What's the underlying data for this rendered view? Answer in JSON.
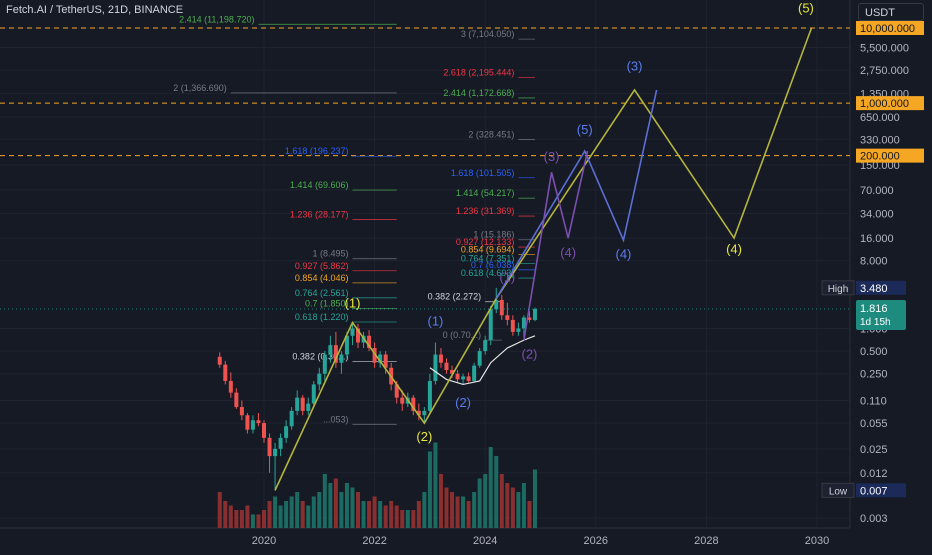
{
  "header": {
    "symbol_title": "Fetch.AI / TetherUS, 21D, BINANCE",
    "currency": "USDT"
  },
  "chart_data": {
    "type": "candlestick",
    "scale": "log",
    "grid": true,
    "y_ticks": [
      "10,000.000",
      "5,500.000",
      "2,750.000",
      "1,350.000",
      "650.000",
      "330.000",
      "150.000",
      "70.000",
      "34.000",
      "16.000",
      "8.000",
      "1.000",
      "0.500",
      "0.250",
      "0.110",
      "0.055",
      "0.025",
      "0.012",
      "0.003"
    ],
    "x_ticks": [
      "2020",
      "2022",
      "2024",
      "2026",
      "2028",
      "2030"
    ],
    "price_labels": [
      {
        "text": "10,000.000",
        "value": 10000,
        "style": "orange"
      },
      {
        "text": "1,000.000",
        "value": 1000,
        "style": "orange"
      },
      {
        "text": "200.000",
        "value": 200,
        "style": "orange"
      },
      {
        "text": "3.480",
        "value": 3.48,
        "tag": "High",
        "style": "dark"
      },
      {
        "text": "1.816",
        "sub": "1d 15h",
        "value": 1.816,
        "style": "teal"
      },
      {
        "text": "0.007",
        "value": 0.007,
        "tag": "Low",
        "style": "dark"
      }
    ],
    "horizontal_levels": [
      {
        "value": 10000,
        "color": "#f5a623"
      },
      {
        "value": 1000,
        "color": "#f5a623"
      },
      {
        "value": 200,
        "color": "#f5a623"
      }
    ],
    "fib_labels": [
      {
        "text": "2.414 (11,198.720)",
        "color": "#4caf50",
        "value": 11198.72,
        "x0": 2019.9,
        "x1": 2022.4
      },
      {
        "text": "3 (7,104.050)",
        "color": "#787b86",
        "value": 7104.05,
        "x0": 2024.6,
        "x1": 2024.9
      },
      {
        "text": "2.618 (2,195.444)",
        "color": "#f23645",
        "value": 2195.444,
        "x0": 2024.6,
        "x1": 2024.9
      },
      {
        "text": "2 (1,366.690)",
        "color": "#787b86",
        "value": 1366.69,
        "x0": 2019.4,
        "x1": 2022.4
      },
      {
        "text": "2.414 (1,172.668)",
        "color": "#4caf50",
        "value": 1172.668,
        "x0": 2024.6,
        "x1": 2024.9
      },
      {
        "text": "2 (328.451)",
        "color": "#787b86",
        "value": 328.451,
        "x0": 2024.6,
        "x1": 2024.9
      },
      {
        "text": "1.618 (196.237)",
        "color": "#2962ff",
        "value": 196.237,
        "x0": 2021.6,
        "x1": 2022.4
      },
      {
        "text": "1.618 (101.505)",
        "color": "#2962ff",
        "value": 101.505,
        "x0": 2024.6,
        "x1": 2024.9
      },
      {
        "text": "1.414 (69.606)",
        "color": "#4caf50",
        "value": 69.606,
        "x0": 2021.6,
        "x1": 2022.4
      },
      {
        "text": "1.414 (54.217)",
        "color": "#4caf50",
        "value": 54.217,
        "x0": 2024.6,
        "x1": 2024.9
      },
      {
        "text": "1.236 (28.177)",
        "color": "#f23645",
        "value": 28.177,
        "x0": 2021.6,
        "x1": 2022.4
      },
      {
        "text": "1.236 (31.369)",
        "color": "#f23645",
        "value": 31.369,
        "x0": 2024.6,
        "x1": 2024.9
      },
      {
        "text": "1 (15.186)",
        "color": "#787b86",
        "value": 15.186,
        "x0": 2024.6,
        "x1": 2024.9
      },
      {
        "text": "0.927 (12.133)",
        "color": "#f23645",
        "value": 12.133,
        "x0": 2024.6,
        "x1": 2024.9
      },
      {
        "text": "0.854 (9.694)",
        "color": "#f5a623",
        "value": 9.694,
        "x0": 2024.6,
        "x1": 2024.9
      },
      {
        "text": "1 (8.495)",
        "color": "#787b86",
        "value": 8.495,
        "x0": 2021.6,
        "x1": 2022.4
      },
      {
        "text": "0.764 (7.351)",
        "color": "#26a69a",
        "value": 7.351,
        "x0": 2024.6,
        "x1": 2024.9
      },
      {
        "text": "0.7 (6.038)",
        "color": "#2962ff",
        "value": 6.038,
        "x0": 2024.6,
        "x1": 2024.9
      },
      {
        "text": "0.927 (5.862)",
        "color": "#f23645",
        "value": 5.862,
        "x0": 2021.6,
        "x1": 2022.4
      },
      {
        "text": "0.618 (4.693)",
        "color": "#26a69a",
        "value": 4.693,
        "x0": 2024.6,
        "x1": 2024.9
      },
      {
        "text": "0.854 (4.046)",
        "color": "#f5a623",
        "value": 4.046,
        "x0": 2021.6,
        "x1": 2022.4
      },
      {
        "text": "0.764 (2.561)",
        "color": "#26a69a",
        "value": 2.561,
        "x0": 2021.6,
        "x1": 2022.4
      },
      {
        "text": "0.382 (2.272)",
        "color": "#d1d4dc",
        "value": 2.272,
        "x0": 2024.0,
        "x1": 2024.3
      },
      {
        "text": "0.7 (1.850)",
        "color": "#4caf50",
        "value": 1.85,
        "x0": 2021.6,
        "x1": 2022.4
      },
      {
        "text": "0.618 (1.220)",
        "color": "#26a69a",
        "value": 1.22,
        "x0": 2021.6,
        "x1": 2022.4
      },
      {
        "text": "0 (0.70...)",
        "color": "#787b86",
        "value": 0.7,
        "x0": 2024.0,
        "x1": 2024.3
      },
      {
        "text": "0.382 (0.36...)",
        "color": "#d1d4dc",
        "value": 0.365,
        "x0": 2021.6,
        "x1": 2022.4
      },
      {
        "text": "...053)",
        "color": "#787b86",
        "value": 0.053,
        "x0": 2021.6,
        "x1": 2022.4
      }
    ],
    "wave_paths": [
      {
        "color": "#b5b53c",
        "points": [
          [
            2020.2,
            0.007
          ],
          [
            2021.6,
            1.2
          ],
          [
            2022.9,
            0.055
          ],
          [
            2024.2,
            2.5
          ],
          [
            2026.7,
            1500
          ],
          [
            2028.5,
            16
          ],
          [
            2029.9,
            10000
          ]
        ]
      },
      {
        "color": "#5b6fd6",
        "points": [
          [
            2024.2,
            2.5
          ],
          [
            2025.8,
            230
          ],
          [
            2026.5,
            15
          ],
          [
            2027.1,
            1500
          ]
        ]
      },
      {
        "color": "#7b4fb0",
        "points": [
          [
            2024.7,
            0.7
          ],
          [
            2025.2,
            120
          ],
          [
            2025.5,
            16
          ],
          [
            2025.85,
            230
          ]
        ]
      }
    ],
    "wave_labels": [
      {
        "text": "(1)",
        "color": "#e8e83c",
        "x": 2021.6,
        "y": 1.9
      },
      {
        "text": "(2)",
        "color": "#e8e83c",
        "x": 2022.9,
        "y": 0.032
      },
      {
        "text": "(4)",
        "color": "#e8e83c",
        "x": 2028.5,
        "y": 10
      },
      {
        "text": "(5)",
        "color": "#e8e83c",
        "x": 2029.8,
        "y": 16000
      },
      {
        "text": "(1)",
        "color": "#5b7cf0",
        "x": 2023.1,
        "y": 1.1
      },
      {
        "text": "(2)",
        "color": "#5b7cf0",
        "x": 2023.6,
        "y": 0.09
      },
      {
        "text": "(3)",
        "color": "#5b7cf0",
        "x": 2026.7,
        "y": 2700
      },
      {
        "text": "(4)",
        "color": "#5b7cf0",
        "x": 2026.5,
        "y": 8.5
      },
      {
        "text": "(5)",
        "color": "#5b7cf0",
        "x": 2025.8,
        "y": 390
      },
      {
        "text": "(1)",
        "color": "#7b4fb0",
        "x": 2024.4,
        "y": 4.2
      },
      {
        "text": "(2)",
        "color": "#7b4fb0",
        "x": 2024.8,
        "y": 0.4
      },
      {
        "text": "(3)",
        "color": "#7b4fb0",
        "x": 2025.2,
        "y": 170
      },
      {
        "text": "(4)",
        "color": "#7b4fb0",
        "x": 2025.5,
        "y": 9
      }
    ],
    "moving_average": [
      [
        2023.0,
        0.3
      ],
      [
        2023.3,
        0.21
      ],
      [
        2023.6,
        0.18
      ],
      [
        2023.9,
        0.2
      ],
      [
        2024.1,
        0.35
      ],
      [
        2024.4,
        0.55
      ],
      [
        2024.7,
        0.7
      ],
      [
        2024.9,
        0.8
      ]
    ],
    "candles": [
      {
        "t": 2019.2,
        "o": 0.42,
        "h": 0.48,
        "l": 0.3,
        "c": 0.33
      },
      {
        "t": 2019.3,
        "o": 0.33,
        "h": 0.37,
        "l": 0.18,
        "c": 0.2
      },
      {
        "t": 2019.4,
        "o": 0.2,
        "h": 0.26,
        "l": 0.12,
        "c": 0.14
      },
      {
        "t": 2019.5,
        "o": 0.14,
        "h": 0.16,
        "l": 0.085,
        "c": 0.09
      },
      {
        "t": 2019.6,
        "o": 0.09,
        "h": 0.11,
        "l": 0.06,
        "c": 0.07
      },
      {
        "t": 2019.7,
        "o": 0.07,
        "h": 0.075,
        "l": 0.04,
        "c": 0.045
      },
      {
        "t": 2019.8,
        "o": 0.045,
        "h": 0.07,
        "l": 0.04,
        "c": 0.06
      },
      {
        "t": 2019.9,
        "o": 0.06,
        "h": 0.075,
        "l": 0.05,
        "c": 0.055
      },
      {
        "t": 2020.0,
        "o": 0.055,
        "h": 0.06,
        "l": 0.03,
        "c": 0.035
      },
      {
        "t": 2020.1,
        "o": 0.035,
        "h": 0.04,
        "l": 0.012,
        "c": 0.02
      },
      {
        "t": 2020.2,
        "o": 0.02,
        "h": 0.03,
        "l": 0.007,
        "c": 0.025
      },
      {
        "t": 2020.3,
        "o": 0.025,
        "h": 0.04,
        "l": 0.02,
        "c": 0.035
      },
      {
        "t": 2020.4,
        "o": 0.035,
        "h": 0.06,
        "l": 0.03,
        "c": 0.05
      },
      {
        "t": 2020.5,
        "o": 0.05,
        "h": 0.09,
        "l": 0.045,
        "c": 0.08
      },
      {
        "t": 2020.6,
        "o": 0.08,
        "h": 0.15,
        "l": 0.07,
        "c": 0.12
      },
      {
        "t": 2020.7,
        "o": 0.12,
        "h": 0.13,
        "l": 0.07,
        "c": 0.08
      },
      {
        "t": 2020.8,
        "o": 0.08,
        "h": 0.12,
        "l": 0.07,
        "c": 0.1
      },
      {
        "t": 2020.9,
        "o": 0.1,
        "h": 0.2,
        "l": 0.09,
        "c": 0.18
      },
      {
        "t": 2021.0,
        "o": 0.18,
        "h": 0.3,
        "l": 0.15,
        "c": 0.25
      },
      {
        "t": 2021.1,
        "o": 0.25,
        "h": 0.5,
        "l": 0.2,
        "c": 0.45
      },
      {
        "t": 2021.2,
        "o": 0.45,
        "h": 0.8,
        "l": 0.35,
        "c": 0.6
      },
      {
        "t": 2021.3,
        "o": 0.6,
        "h": 0.9,
        "l": 0.3,
        "c": 0.35
      },
      {
        "t": 2021.4,
        "o": 0.35,
        "h": 0.5,
        "l": 0.25,
        "c": 0.45
      },
      {
        "t": 2021.5,
        "o": 0.45,
        "h": 0.9,
        "l": 0.4,
        "c": 0.8
      },
      {
        "t": 2021.6,
        "o": 0.8,
        "h": 1.2,
        "l": 0.6,
        "c": 1.0
      },
      {
        "t": 2021.7,
        "o": 1.0,
        "h": 1.15,
        "l": 0.55,
        "c": 0.65
      },
      {
        "t": 2021.8,
        "o": 0.65,
        "h": 0.9,
        "l": 0.55,
        "c": 0.8
      },
      {
        "t": 2021.9,
        "o": 0.8,
        "h": 0.95,
        "l": 0.5,
        "c": 0.55
      },
      {
        "t": 2022.0,
        "o": 0.55,
        "h": 0.65,
        "l": 0.3,
        "c": 0.35
      },
      {
        "t": 2022.1,
        "o": 0.35,
        "h": 0.5,
        "l": 0.3,
        "c": 0.45
      },
      {
        "t": 2022.2,
        "o": 0.45,
        "h": 0.5,
        "l": 0.25,
        "c": 0.3
      },
      {
        "t": 2022.3,
        "o": 0.3,
        "h": 0.35,
        "l": 0.15,
        "c": 0.18
      },
      {
        "t": 2022.4,
        "o": 0.18,
        "h": 0.2,
        "l": 0.1,
        "c": 0.12
      },
      {
        "t": 2022.5,
        "o": 0.12,
        "h": 0.15,
        "l": 0.08,
        "c": 0.1
      },
      {
        "t": 2022.6,
        "o": 0.1,
        "h": 0.14,
        "l": 0.09,
        "c": 0.12
      },
      {
        "t": 2022.7,
        "o": 0.12,
        "h": 0.13,
        "l": 0.07,
        "c": 0.08
      },
      {
        "t": 2022.8,
        "o": 0.08,
        "h": 0.1,
        "l": 0.06,
        "c": 0.07
      },
      {
        "t": 2022.9,
        "o": 0.07,
        "h": 0.09,
        "l": 0.055,
        "c": 0.08
      },
      {
        "t": 2023.0,
        "o": 0.08,
        "h": 0.25,
        "l": 0.075,
        "c": 0.2
      },
      {
        "t": 2023.1,
        "o": 0.2,
        "h": 0.65,
        "l": 0.18,
        "c": 0.45
      },
      {
        "t": 2023.2,
        "o": 0.45,
        "h": 0.55,
        "l": 0.3,
        "c": 0.35
      },
      {
        "t": 2023.3,
        "o": 0.35,
        "h": 0.4,
        "l": 0.25,
        "c": 0.28
      },
      {
        "t": 2023.4,
        "o": 0.28,
        "h": 0.32,
        "l": 0.22,
        "c": 0.25
      },
      {
        "t": 2023.5,
        "o": 0.25,
        "h": 0.28,
        "l": 0.19,
        "c": 0.21
      },
      {
        "t": 2023.6,
        "o": 0.21,
        "h": 0.25,
        "l": 0.18,
        "c": 0.23
      },
      {
        "t": 2023.7,
        "o": 0.23,
        "h": 0.26,
        "l": 0.19,
        "c": 0.2
      },
      {
        "t": 2023.8,
        "o": 0.2,
        "h": 0.35,
        "l": 0.19,
        "c": 0.32
      },
      {
        "t": 2023.9,
        "o": 0.32,
        "h": 0.55,
        "l": 0.3,
        "c": 0.5
      },
      {
        "t": 2024.0,
        "o": 0.5,
        "h": 0.8,
        "l": 0.45,
        "c": 0.7
      },
      {
        "t": 2024.1,
        "o": 0.7,
        "h": 2.0,
        "l": 0.6,
        "c": 1.8
      },
      {
        "t": 2024.2,
        "o": 1.8,
        "h": 3.48,
        "l": 1.6,
        "c": 2.4
      },
      {
        "t": 2024.3,
        "o": 2.4,
        "h": 2.8,
        "l": 1.3,
        "c": 1.5
      },
      {
        "t": 2024.4,
        "o": 1.5,
        "h": 2.2,
        "l": 1.1,
        "c": 1.3
      },
      {
        "t": 2024.5,
        "o": 1.3,
        "h": 1.5,
        "l": 0.8,
        "c": 0.9
      },
      {
        "t": 2024.6,
        "o": 0.9,
        "h": 1.2,
        "l": 0.8,
        "c": 1.0
      },
      {
        "t": 2024.7,
        "o": 1.0,
        "h": 1.5,
        "l": 0.75,
        "c": 1.4
      },
      {
        "t": 2024.8,
        "o": 1.4,
        "h": 1.7,
        "l": 1.2,
        "c": 1.3
      },
      {
        "t": 2024.9,
        "o": 1.3,
        "h": 1.9,
        "l": 1.25,
        "c": 1.816
      }
    ],
    "volume": [
      {
        "t": 2019.2,
        "v": 0.4,
        "up": false
      },
      {
        "t": 2019.3,
        "v": 0.3,
        "up": false
      },
      {
        "t": 2019.4,
        "v": 0.25,
        "up": false
      },
      {
        "t": 2019.5,
        "v": 0.2,
        "up": false
      },
      {
        "t": 2019.6,
        "v": 0.2,
        "up": false
      },
      {
        "t": 2019.7,
        "v": 0.25,
        "up": false
      },
      {
        "t": 2019.8,
        "v": 0.15,
        "up": true
      },
      {
        "t": 2019.9,
        "v": 0.15,
        "up": false
      },
      {
        "t": 2020.0,
        "v": 0.2,
        "up": false
      },
      {
        "t": 2020.1,
        "v": 0.3,
        "up": false
      },
      {
        "t": 2020.2,
        "v": 0.35,
        "up": true
      },
      {
        "t": 2020.3,
        "v": 0.25,
        "up": true
      },
      {
        "t": 2020.4,
        "v": 0.3,
        "up": true
      },
      {
        "t": 2020.5,
        "v": 0.35,
        "up": true
      },
      {
        "t": 2020.6,
        "v": 0.4,
        "up": true
      },
      {
        "t": 2020.7,
        "v": 0.3,
        "up": false
      },
      {
        "t": 2020.8,
        "v": 0.25,
        "up": true
      },
      {
        "t": 2020.9,
        "v": 0.35,
        "up": true
      },
      {
        "t": 2021.0,
        "v": 0.4,
        "up": true
      },
      {
        "t": 2021.1,
        "v": 0.6,
        "up": true
      },
      {
        "t": 2021.2,
        "v": 0.5,
        "up": true
      },
      {
        "t": 2021.3,
        "v": 0.55,
        "up": false
      },
      {
        "t": 2021.4,
        "v": 0.4,
        "up": true
      },
      {
        "t": 2021.5,
        "v": 0.5,
        "up": true
      },
      {
        "t": 2021.6,
        "v": 0.45,
        "up": true
      },
      {
        "t": 2021.7,
        "v": 0.4,
        "up": false
      },
      {
        "t": 2021.8,
        "v": 0.3,
        "up": true
      },
      {
        "t": 2021.9,
        "v": 0.3,
        "up": false
      },
      {
        "t": 2022.0,
        "v": 0.35,
        "up": false
      },
      {
        "t": 2022.1,
        "v": 0.3,
        "up": true
      },
      {
        "t": 2022.2,
        "v": 0.25,
        "up": false
      },
      {
        "t": 2022.3,
        "v": 0.3,
        "up": false
      },
      {
        "t": 2022.4,
        "v": 0.25,
        "up": false
      },
      {
        "t": 2022.5,
        "v": 0.2,
        "up": false
      },
      {
        "t": 2022.6,
        "v": 0.2,
        "up": true
      },
      {
        "t": 2022.7,
        "v": 0.2,
        "up": false
      },
      {
        "t": 2022.8,
        "v": 0.3,
        "up": false
      },
      {
        "t": 2022.9,
        "v": 0.4,
        "up": true
      },
      {
        "t": 2023.0,
        "v": 0.85,
        "up": true
      },
      {
        "t": 2023.1,
        "v": 0.95,
        "up": true
      },
      {
        "t": 2023.2,
        "v": 0.6,
        "up": false
      },
      {
        "t": 2023.3,
        "v": 0.45,
        "up": false
      },
      {
        "t": 2023.4,
        "v": 0.4,
        "up": false
      },
      {
        "t": 2023.5,
        "v": 0.35,
        "up": false
      },
      {
        "t": 2023.6,
        "v": 0.35,
        "up": true
      },
      {
        "t": 2023.7,
        "v": 0.3,
        "up": false
      },
      {
        "t": 2023.8,
        "v": 0.4,
        "up": true
      },
      {
        "t": 2023.9,
        "v": 0.55,
        "up": true
      },
      {
        "t": 2024.0,
        "v": 0.6,
        "up": true
      },
      {
        "t": 2024.1,
        "v": 0.9,
        "up": true
      },
      {
        "t": 2024.2,
        "v": 0.8,
        "up": true
      },
      {
        "t": 2024.3,
        "v": 0.6,
        "up": false
      },
      {
        "t": 2024.4,
        "v": 0.5,
        "up": false
      },
      {
        "t": 2024.5,
        "v": 0.45,
        "up": false
      },
      {
        "t": 2024.6,
        "v": 0.4,
        "up": true
      },
      {
        "t": 2024.7,
        "v": 0.5,
        "up": true
      },
      {
        "t": 2024.8,
        "v": 0.3,
        "up": false
      },
      {
        "t": 2024.9,
        "v": 0.65,
        "up": true
      }
    ],
    "colors": {
      "up": "#26a69a",
      "down": "#ef5350",
      "vol_up": "#1c6b63",
      "vol_down": "#8a2f2f",
      "ma": "#e6e6e6"
    }
  }
}
